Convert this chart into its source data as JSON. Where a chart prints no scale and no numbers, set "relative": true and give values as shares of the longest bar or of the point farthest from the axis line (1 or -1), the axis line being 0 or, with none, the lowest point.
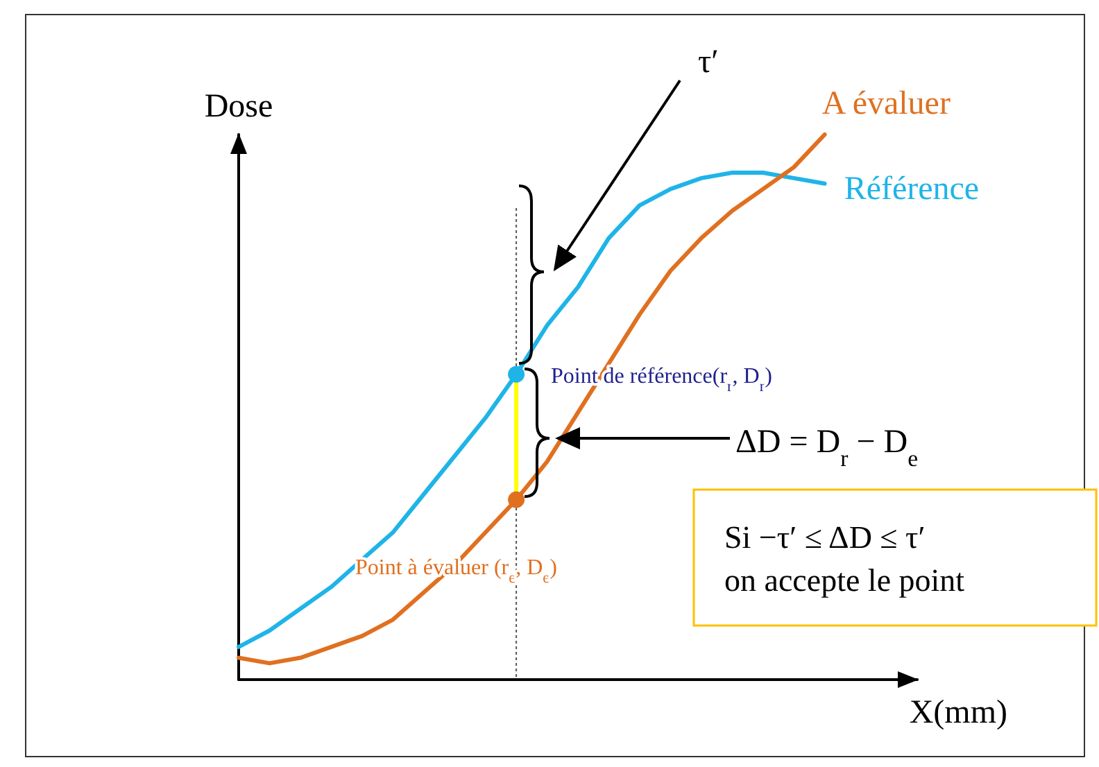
{
  "chart_data": {
    "type": "line",
    "relative": true,
    "xlabel": "X(mm)",
    "ylabel": "Dose",
    "grid": false,
    "categories": [
      null,
      null,
      null,
      null,
      null,
      null,
      null,
      null,
      null,
      null,
      null,
      null,
      null,
      null,
      null,
      null,
      null,
      null,
      null,
      null
    ],
    "series": [
      {
        "name": "Référence",
        "color": "#1fb4e8",
        "values": [
          0.06,
          0.09,
          0.13,
          0.17,
          0.22,
          0.27,
          0.34,
          0.41,
          0.48,
          0.56,
          0.65,
          0.72,
          0.81,
          0.87,
          0.9,
          0.92,
          0.93,
          0.93,
          0.92,
          0.91
        ]
      },
      {
        "name": "A évaluer",
        "color": "#e07020",
        "values": [
          0.04,
          0.03,
          0.04,
          0.06,
          0.08,
          0.11,
          0.16,
          0.21,
          0.27,
          0.33,
          0.4,
          0.49,
          0.58,
          0.67,
          0.75,
          0.81,
          0.86,
          0.9,
          0.94,
          1.0
        ]
      }
    ],
    "annotations": [
      "τ′",
      "Point de référence(r$_{r}$, D$_{r}$)",
      "Point à évaluer (r$_{e}$, D$_{e}$)",
      "ΔD = D$_{r}$ − D$_{e}$",
      "Si   −τ′ ≤ ΔD ≤ τ′\non accepte le point"
    ]
  }
}
